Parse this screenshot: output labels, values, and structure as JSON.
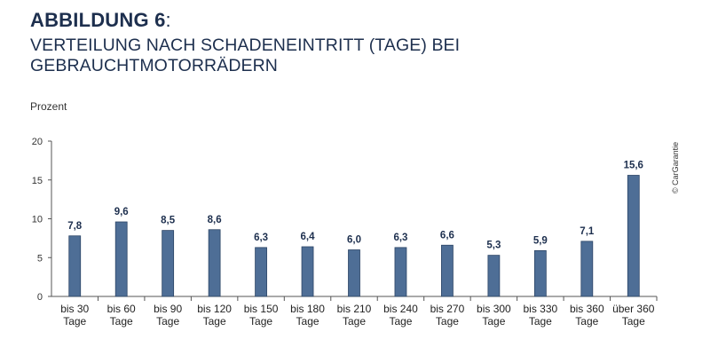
{
  "header": {
    "title": "ABBILDUNG 6",
    "title_colon": ":",
    "subtitle": "VERTEILUNG NACH SCHADENEINTRITT (TAGE) BEI GEBRAUCHTMOTORRÄDERN"
  },
  "copyright": "© CarGarantie",
  "colors": {
    "bar": "#4e6e96",
    "bar_stroke": "#2c4566",
    "text": "#1d2f4e",
    "axis": "#555555"
  },
  "chart_data": {
    "type": "bar",
    "title": "VERTEILUNG NACH SCHADENEINTRITT (TAGE) BEI GEBRAUCHTMOTORRÄDERN",
    "ylabel": "Prozent",
    "xlabel": "",
    "ylim": [
      0,
      20
    ],
    "yticks": [
      0,
      5,
      10,
      15,
      20
    ],
    "grid": false,
    "categories": [
      [
        "bis 30",
        "Tage"
      ],
      [
        "bis 60",
        "Tage"
      ],
      [
        "bis 90",
        "Tage"
      ],
      [
        "bis 120",
        "Tage"
      ],
      [
        "bis 150",
        "Tage"
      ],
      [
        "bis 180",
        "Tage"
      ],
      [
        "bis 210",
        "Tage"
      ],
      [
        "bis 240",
        "Tage"
      ],
      [
        "bis 270",
        "Tage"
      ],
      [
        "bis 300",
        "Tage"
      ],
      [
        "bis 330",
        "Tage"
      ],
      [
        "bis 360",
        "Tage"
      ],
      [
        "über 360",
        "Tage"
      ]
    ],
    "values": [
      7.8,
      9.6,
      8.5,
      8.6,
      6.3,
      6.4,
      6.0,
      6.3,
      6.6,
      5.3,
      5.9,
      7.1,
      15.6
    ],
    "value_labels": [
      "7,8",
      "9,6",
      "8,5",
      "8,6",
      "6,3",
      "6,4",
      "6,0",
      "6,3",
      "6,6",
      "5,3",
      "5,9",
      "7,1",
      "15,6"
    ]
  }
}
